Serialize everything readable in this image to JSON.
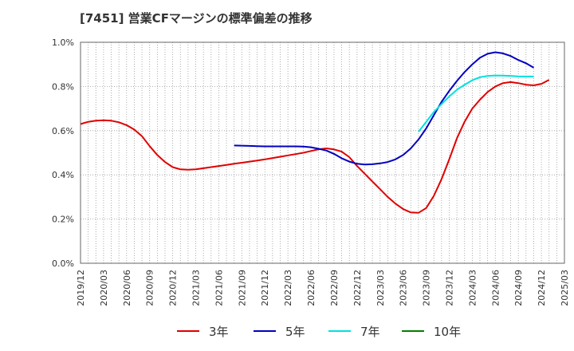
{
  "chart_data": {
    "type": "line",
    "title": "[7451]  営業CFマージンの標準偏差の推移",
    "xlabel": "",
    "ylabel": "",
    "ylim": [
      0.0,
      1.0
    ],
    "yticks": [
      0.0,
      0.2,
      0.4,
      0.6,
      0.8,
      1.0
    ],
    "ytick_labels": [
      "0.0%",
      "0.2%",
      "0.4%",
      "0.6%",
      "0.8%",
      "1.0%"
    ],
    "xrange": [
      "2019-12",
      "2025-03"
    ],
    "xtick_labels": [
      "2019/12",
      "2020/03",
      "2020/06",
      "2020/09",
      "2020/12",
      "2021/03",
      "2021/06",
      "2021/09",
      "2021/12",
      "2022/03",
      "2022/06",
      "2022/09",
      "2022/12",
      "2023/03",
      "2023/06",
      "2023/09",
      "2023/12",
      "2024/03",
      "2024/06",
      "2024/09",
      "2024/12",
      "2025/03"
    ],
    "grid": true,
    "legend_position": "bottom",
    "series": [
      {
        "name": "3年",
        "color": "#e00000",
        "points": [
          [
            "2019-12",
            0.63
          ],
          [
            "2020-01",
            0.64
          ],
          [
            "2020-02",
            0.645
          ],
          [
            "2020-03",
            0.647
          ],
          [
            "2020-04",
            0.645
          ],
          [
            "2020-05",
            0.638
          ],
          [
            "2020-06",
            0.625
          ],
          [
            "2020-07",
            0.605
          ],
          [
            "2020-08",
            0.575
          ],
          [
            "2020-09",
            0.53
          ],
          [
            "2020-10",
            0.49
          ],
          [
            "2020-11",
            0.458
          ],
          [
            "2020-12",
            0.435
          ],
          [
            "2021-01",
            0.425
          ],
          [
            "2021-02",
            0.423
          ],
          [
            "2021-03",
            0.425
          ],
          [
            "2021-04",
            0.43
          ],
          [
            "2021-05",
            0.435
          ],
          [
            "2021-06",
            0.44
          ],
          [
            "2021-07",
            0.445
          ],
          [
            "2021-08",
            0.45
          ],
          [
            "2021-09",
            0.455
          ],
          [
            "2021-10",
            0.46
          ],
          [
            "2021-11",
            0.465
          ],
          [
            "2021-12",
            0.47
          ],
          [
            "2022-01",
            0.476
          ],
          [
            "2022-02",
            0.482
          ],
          [
            "2022-03",
            0.488
          ],
          [
            "2022-04",
            0.494
          ],
          [
            "2022-05",
            0.5
          ],
          [
            "2022-06",
            0.508
          ],
          [
            "2022-07",
            0.516
          ],
          [
            "2022-08",
            0.52
          ],
          [
            "2022-09",
            0.515
          ],
          [
            "2022-10",
            0.505
          ],
          [
            "2022-11",
            0.48
          ],
          [
            "2022-12",
            0.44
          ],
          [
            "2023-01",
            0.405
          ],
          [
            "2023-02",
            0.37
          ],
          [
            "2023-03",
            0.335
          ],
          [
            "2023-04",
            0.3
          ],
          [
            "2023-05",
            0.27
          ],
          [
            "2023-06",
            0.245
          ],
          [
            "2023-07",
            0.23
          ],
          [
            "2023-08",
            0.228
          ],
          [
            "2023-09",
            0.25
          ],
          [
            "2023-10",
            0.305
          ],
          [
            "2023-11",
            0.38
          ],
          [
            "2023-12",
            0.47
          ],
          [
            "2024-01",
            0.565
          ],
          [
            "2024-02",
            0.64
          ],
          [
            "2024-03",
            0.7
          ],
          [
            "2024-04",
            0.74
          ],
          [
            "2024-05",
            0.775
          ],
          [
            "2024-06",
            0.8
          ],
          [
            "2024-07",
            0.815
          ],
          [
            "2024-08",
            0.82
          ],
          [
            "2024-09",
            0.815
          ],
          [
            "2024-10",
            0.808
          ],
          [
            "2024-11",
            0.805
          ],
          [
            "2024-12",
            0.812
          ],
          [
            "2025-01",
            0.83
          ]
        ]
      },
      {
        "name": "5年",
        "color": "#0000c0",
        "points": [
          [
            "2021-08",
            0.533
          ],
          [
            "2021-09",
            0.532
          ],
          [
            "2021-10",
            0.531
          ],
          [
            "2021-11",
            0.53
          ],
          [
            "2021-12",
            0.529
          ],
          [
            "2022-01",
            0.529
          ],
          [
            "2022-02",
            0.529
          ],
          [
            "2022-03",
            0.529
          ],
          [
            "2022-04",
            0.529
          ],
          [
            "2022-05",
            0.528
          ],
          [
            "2022-06",
            0.525
          ],
          [
            "2022-07",
            0.518
          ],
          [
            "2022-08",
            0.51
          ],
          [
            "2022-09",
            0.495
          ],
          [
            "2022-10",
            0.475
          ],
          [
            "2022-11",
            0.46
          ],
          [
            "2022-12",
            0.45
          ],
          [
            "2023-01",
            0.447
          ],
          [
            "2023-02",
            0.448
          ],
          [
            "2023-03",
            0.452
          ],
          [
            "2023-04",
            0.458
          ],
          [
            "2023-05",
            0.47
          ],
          [
            "2023-06",
            0.49
          ],
          [
            "2023-07",
            0.52
          ],
          [
            "2023-08",
            0.56
          ],
          [
            "2023-09",
            0.61
          ],
          [
            "2023-10",
            0.67
          ],
          [
            "2023-11",
            0.73
          ],
          [
            "2023-12",
            0.78
          ],
          [
            "2024-01",
            0.825
          ],
          [
            "2024-02",
            0.865
          ],
          [
            "2024-03",
            0.9
          ],
          [
            "2024-04",
            0.93
          ],
          [
            "2024-05",
            0.948
          ],
          [
            "2024-06",
            0.955
          ],
          [
            "2024-07",
            0.95
          ],
          [
            "2024-08",
            0.938
          ],
          [
            "2024-09",
            0.92
          ],
          [
            "2024-10",
            0.905
          ],
          [
            "2024-11",
            0.885
          ]
        ]
      },
      {
        "name": "7年",
        "color": "#00e0e0",
        "points": [
          [
            "2023-08",
            0.595
          ],
          [
            "2023-09",
            0.64
          ],
          [
            "2023-10",
            0.685
          ],
          [
            "2023-11",
            0.72
          ],
          [
            "2023-12",
            0.755
          ],
          [
            "2024-01",
            0.785
          ],
          [
            "2024-02",
            0.808
          ],
          [
            "2024-03",
            0.828
          ],
          [
            "2024-04",
            0.842
          ],
          [
            "2024-05",
            0.848
          ],
          [
            "2024-06",
            0.85
          ],
          [
            "2024-07",
            0.849
          ],
          [
            "2024-08",
            0.848
          ],
          [
            "2024-09",
            0.846
          ],
          [
            "2024-10",
            0.845
          ],
          [
            "2024-11",
            0.845
          ]
        ]
      },
      {
        "name": "10年",
        "color": "#008000",
        "points": []
      }
    ]
  }
}
